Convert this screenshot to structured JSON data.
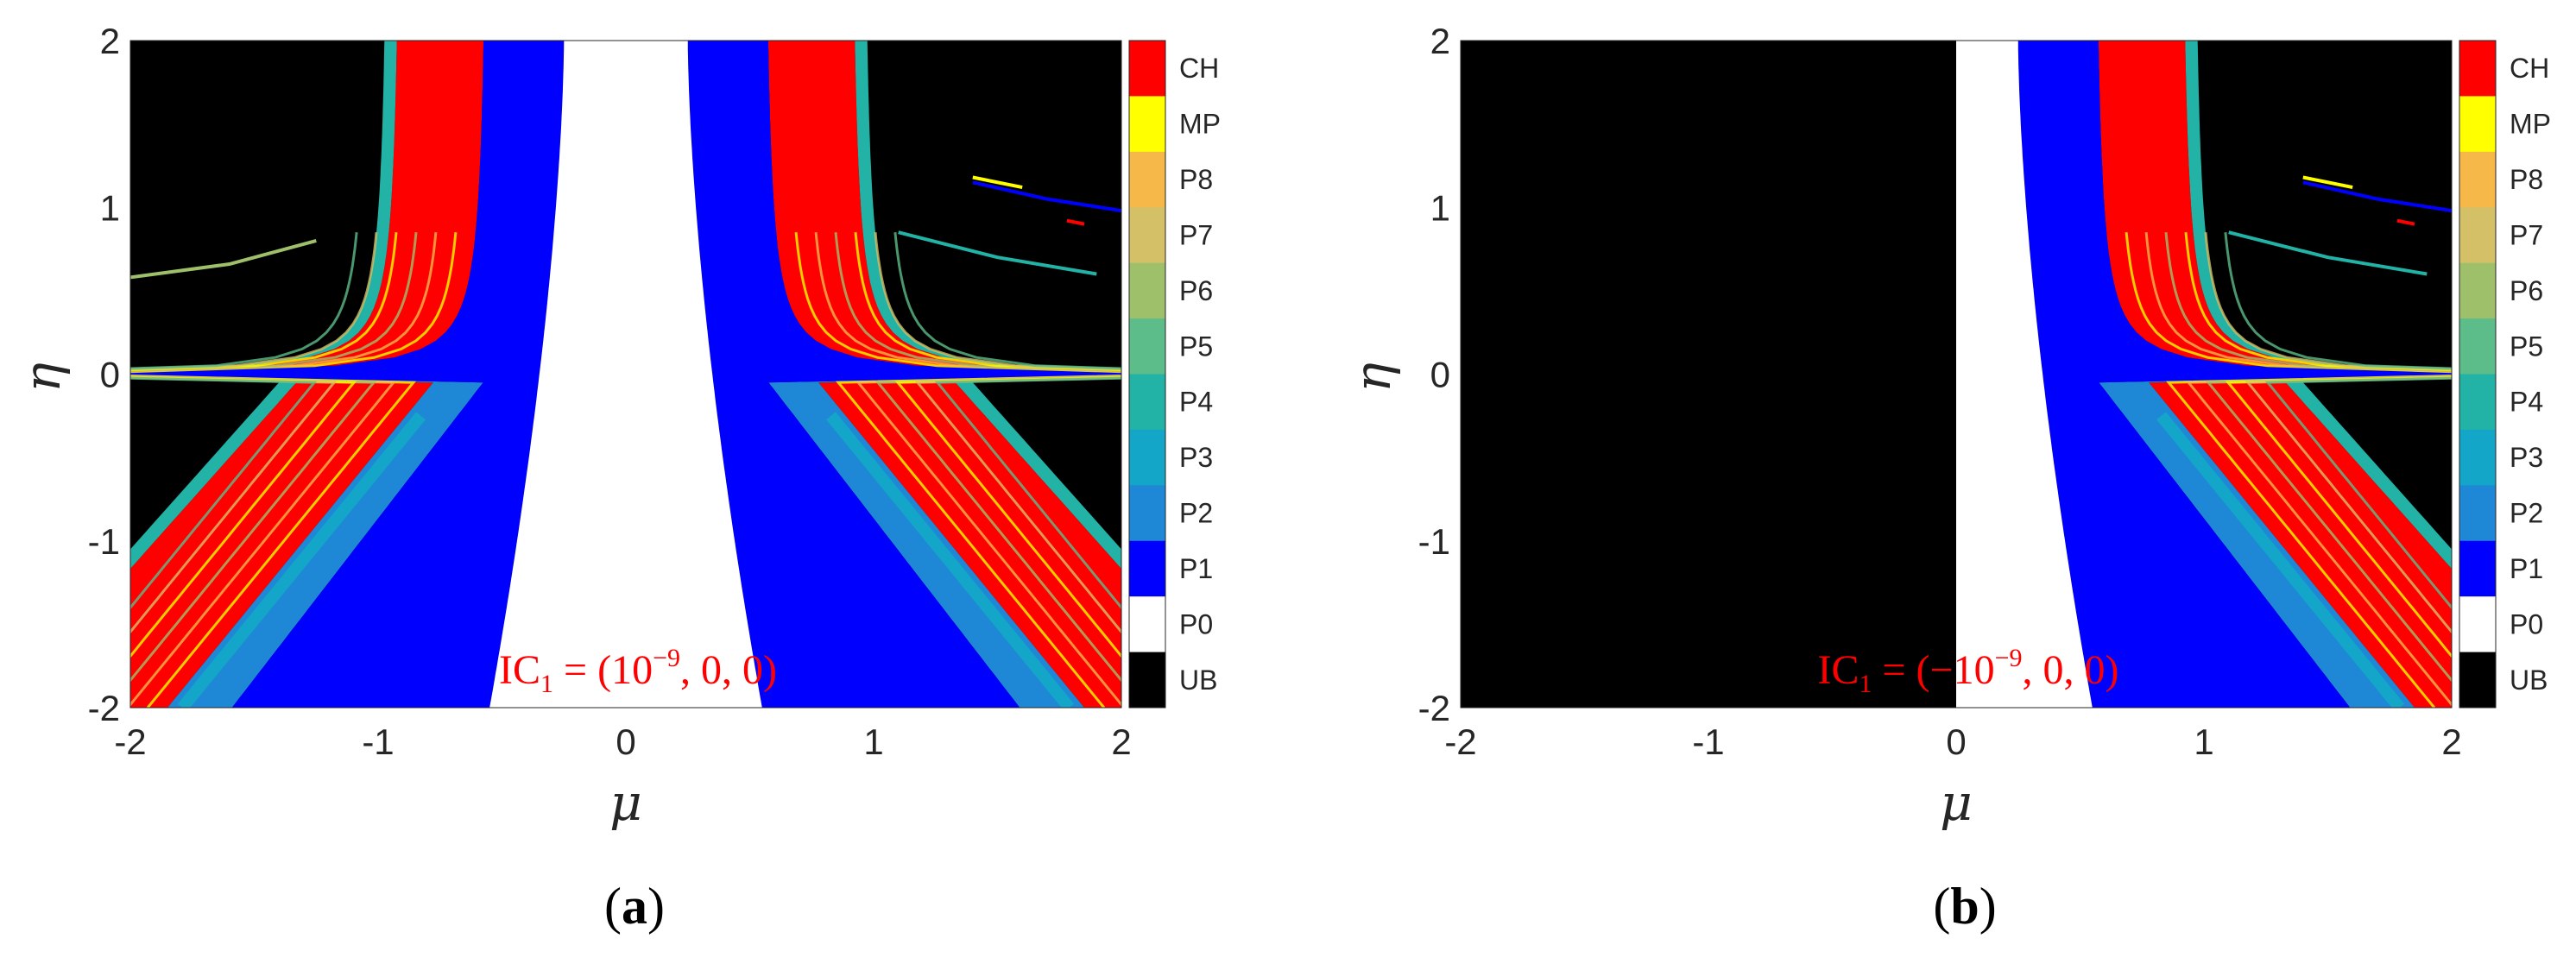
{
  "chart_data": [
    {
      "type": "heatmap",
      "panel_label": "(a)",
      "panel_letter": "a",
      "xlabel": "μ",
      "ylabel": "η",
      "xlim": [
        -2,
        2
      ],
      "ylim": [
        -2,
        2
      ],
      "x_ticks": [
        "-2",
        "-1",
        "0",
        "1",
        "2"
      ],
      "y_ticks": [
        "-2",
        "-1",
        "0",
        "1",
        "2"
      ],
      "annotation": {
        "base": "IC",
        "sub": "1",
        "pre": " = (10",
        "sup": "−9",
        "post": ", 0, 0)"
      },
      "colorbar": [
        "CH",
        "MP",
        "P8",
        "P7",
        "P6",
        "P5",
        "P4",
        "P3",
        "P2",
        "P1",
        "P0",
        "UB"
      ],
      "regions": "Left-half symmetric: P0 central band (|μ| < ~0.25 at top, ~0.55 at bottom); P1 bands either side; P2/P3 fans toward corners; chaotic (CH) strips with MP/P4-P8 mixtures; UB (black) elsewhere on both sides."
    },
    {
      "type": "heatmap",
      "panel_label": "(b)",
      "panel_letter": "b",
      "xlabel": "μ",
      "ylabel": "η",
      "xlim": [
        -2,
        2
      ],
      "ylim": [
        -2,
        2
      ],
      "x_ticks": [
        "-2",
        "-1",
        "0",
        "1",
        "2"
      ],
      "y_ticks": [
        "-2",
        "-1",
        "0",
        "1",
        "2"
      ],
      "annotation": {
        "base": "IC",
        "sub": "1",
        "pre": " = (−10",
        "sup": "−9",
        "post": ", 0, 0)"
      },
      "colorbar": [
        "CH",
        "MP",
        "P8",
        "P7",
        "P6",
        "P5",
        "P4",
        "P3",
        "P2",
        "P1",
        "P0",
        "UB"
      ],
      "regions": "UB (black) for μ < 0; P0 band from μ = 0 to ~0.55; P1, P2/P3 and chaotic strips on the right matching panel (a)."
    }
  ],
  "colors": {
    "CH": "#ff0000",
    "MP": "#ffff00",
    "P8": "#f7b84a",
    "P7": "#d4c067",
    "P6": "#9ec06a",
    "P5": "#5dbd8a",
    "P4": "#22b3a6",
    "P3": "#13a6c9",
    "P2": "#1e88d6",
    "P1": "#0000ff",
    "P0": "#ffffff",
    "UB": "#000000",
    "annotation": "#ff0000"
  }
}
